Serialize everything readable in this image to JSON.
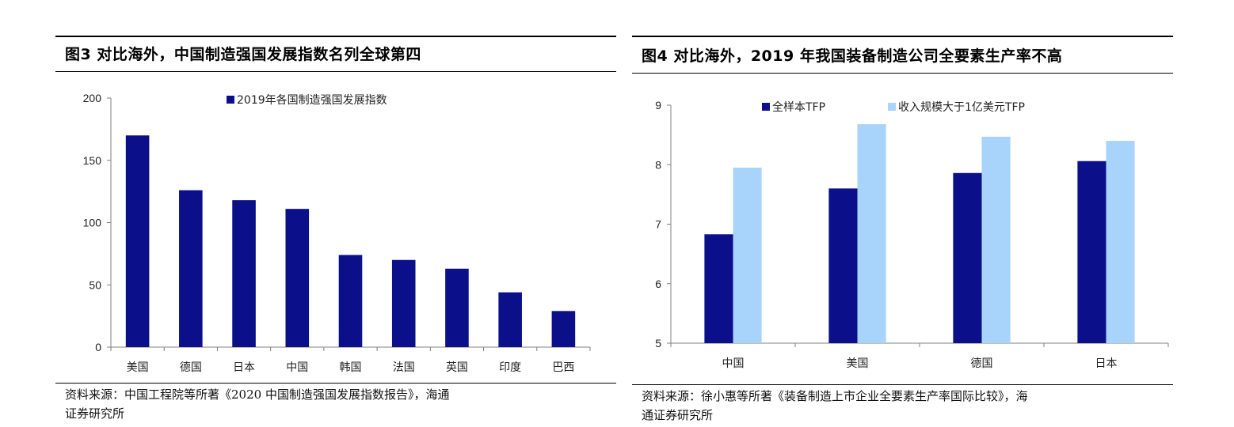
{
  "colors": {
    "dark_navy": "#0b0f8a",
    "light_blue": "#a8d3fa",
    "axis": "#808080"
  },
  "left": {
    "title": "图3  对比海外，中国制造强国发展指数名列全球第四",
    "source_line1": "资料来源：中国工程院等所著《2020 中国制造强国发展指数报告》，海通",
    "source_line2": "证券研究所"
  },
  "right": {
    "title": "图4  对比海外，2019 年我国装备制造公司全要素生产率不高",
    "source_line1": "资料来源：徐小惠等所著《装备制造上市企业全要素生产率国际比较》，海",
    "source_line2": "通证券研究所"
  },
  "chart_data": [
    {
      "type": "bar",
      "categories": [
        "美国",
        "德国",
        "日本",
        "中国",
        "韩国",
        "法国",
        "英国",
        "印度",
        "巴西"
      ],
      "series": [
        {
          "name": "2019年各国制造强国发展指数",
          "values": [
            170,
            126,
            118,
            111,
            74,
            70,
            63,
            44,
            29
          ],
          "color": "#0b0f8a"
        }
      ],
      "ylim": [
        0,
        200
      ],
      "yticks": [
        "0",
        "50",
        "100",
        "150",
        "200"
      ],
      "grid": false,
      "legend_position": "top-center"
    },
    {
      "type": "bar",
      "categories": [
        "中国",
        "美国",
        "德国",
        "日本"
      ],
      "series": [
        {
          "name": "全样本TFP",
          "values": [
            6.83,
            7.6,
            7.86,
            8.06
          ],
          "color": "#0b0f8a"
        },
        {
          "name": "收入规模大于1亿美元TFP",
          "values": [
            7.95,
            8.68,
            8.47,
            8.4
          ],
          "color": "#a8d3fa"
        }
      ],
      "ylim": [
        5,
        9
      ],
      "yticks": [
        "5",
        "6",
        "7",
        "8",
        "9"
      ],
      "grid": false,
      "legend_position": "top-center"
    }
  ]
}
